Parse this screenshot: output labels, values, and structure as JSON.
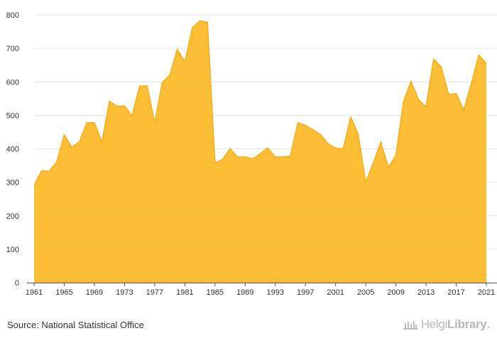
{
  "chart_data": {
    "type": "area",
    "title": "",
    "xlabel": "",
    "ylabel": "",
    "ylim": [
      0,
      800
    ],
    "yticks": [
      0,
      100,
      200,
      300,
      400,
      500,
      600,
      700,
      800
    ],
    "xticks": [
      1961,
      1965,
      1969,
      1973,
      1977,
      1981,
      1985,
      1989,
      1993,
      1997,
      2001,
      2005,
      2009,
      2013,
      2017,
      2021
    ],
    "x": [
      1961,
      1962,
      1963,
      1964,
      1965,
      1966,
      1967,
      1968,
      1969,
      1970,
      1971,
      1972,
      1973,
      1974,
      1975,
      1976,
      1977,
      1978,
      1979,
      1980,
      1981,
      1982,
      1983,
      1984,
      1985,
      1986,
      1987,
      1988,
      1989,
      1990,
      1991,
      1992,
      1993,
      1994,
      1995,
      1996,
      1997,
      1998,
      1999,
      2000,
      2001,
      2002,
      2003,
      2004,
      2005,
      2006,
      2007,
      2008,
      2009,
      2010,
      2011,
      2012,
      2013,
      2014,
      2015,
      2016,
      2017,
      2018,
      2019,
      2020,
      2021
    ],
    "values": [
      290,
      335,
      333,
      360,
      442,
      405,
      420,
      478,
      478,
      420,
      542,
      527,
      528,
      498,
      587,
      588,
      478,
      598,
      620,
      697,
      660,
      762,
      782,
      778,
      358,
      368,
      400,
      375,
      376,
      370,
      385,
      403,
      375,
      376,
      378,
      478,
      470,
      457,
      442,
      415,
      402,
      400,
      495,
      443,
      300,
      358,
      420,
      345,
      380,
      540,
      602,
      547,
      525,
      668,
      645,
      562,
      565,
      515,
      595,
      680,
      655
    ],
    "color": "#FBBA2A",
    "grid": true,
    "legend": "none"
  },
  "footer": {
    "source": "Source: National Statistical Office",
    "logo_light": "Helgi",
    "logo_bold": "Library",
    "logo_suffix": "."
  }
}
